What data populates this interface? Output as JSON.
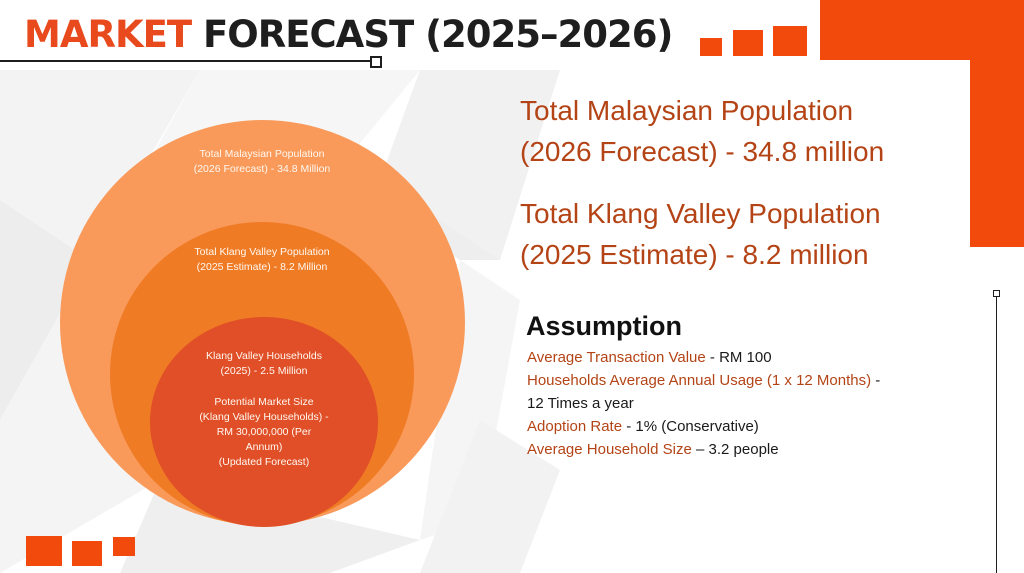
{
  "title": {
    "accent": "MARKET",
    "rest": "FORECAST (2025–2026)"
  },
  "circles": {
    "outer": {
      "line1": "Total Malaysian Population",
      "line2": "(2026 Forecast) - 34.8 Million"
    },
    "middle": {
      "line1": "Total Klang Valley Population",
      "line2": "(2025 Estimate) - 8.2 Million"
    },
    "inner": {
      "households_line1": "Klang Valley Households",
      "households_line2": "(2025) - 2.5 Million",
      "market_line1": "Potential Market Size",
      "market_line2": "(Klang Valley Households) -",
      "market_line3": "RM 30,000,000 (Per",
      "market_line4": "Annum)",
      "market_line5": "(Updated Forecast)"
    }
  },
  "highlights": {
    "malaysia_line1": "Total Malaysian Population",
    "malaysia_line2": "(2026 Forecast) - 34.8 million",
    "klang_line1": "Total Klang Valley Population",
    "klang_line2": "(2025 Estimate) - 8.2 million"
  },
  "assumption": {
    "heading": "Assumption",
    "items": [
      {
        "label": "Average Transaction Value",
        "value": " - RM 100"
      },
      {
        "label": "Households Average Annual Usage (1 x 12 Months)",
        "value": " -"
      },
      {
        "label": "",
        "value": "12 Times a year"
      },
      {
        "label": "Adoption Rate",
        "value": " - 1% (Conservative)"
      },
      {
        "label": "Average Household Size",
        "value": " – 3.2 people"
      }
    ]
  },
  "colors": {
    "accent": "#f24a0c",
    "title_accent": "#e8491d",
    "text_accent": "#b44416",
    "circle_outer": "#f99a5b",
    "circle_middle": "#f07b25",
    "circle_inner": "#e04f27"
  }
}
